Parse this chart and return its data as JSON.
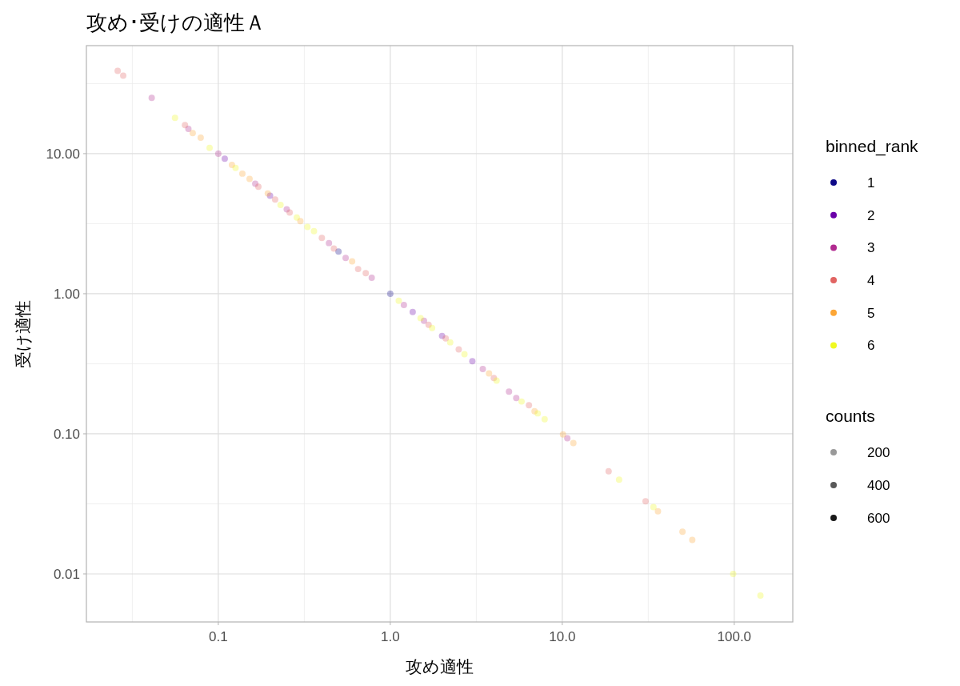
{
  "chart_data": {
    "type": "scatter",
    "title": "攻め･受けの適性Ａ",
    "xlabel": "攻め適性",
    "ylabel": "受け適性",
    "legend_title": "binned_rank",
    "log": "xy",
    "grid": true,
    "legend": "right",
    "marker": "circle",
    "xlim": [
      0.0171,
      219
    ],
    "ylim": [
      0.00454,
      59
    ],
    "xticks": [
      {
        "value": 0.1,
        "label": "0.1"
      },
      {
        "value": 1,
        "label": "1.0"
      },
      {
        "value": 10,
        "label": "10.0"
      },
      {
        "value": 100,
        "label": "100.0"
      }
    ],
    "yticks": [
      {
        "value": 0.01,
        "label": "0.01"
      },
      {
        "value": 0.1,
        "label": "0.10"
      },
      {
        "value": 1,
        "label": "1.00"
      },
      {
        "value": 10,
        "label": "10.00"
      }
    ],
    "annotations": [
      "counts",
      "200",
      "400",
      "600"
    ],
    "series": [
      {
        "name": "1",
        "color": "#0d0887",
        "x": [
          0.5,
          1.0
        ],
        "values": [
          2.0,
          1.0
        ]
      },
      {
        "name": "2",
        "color": "#6a00a8",
        "x": [
          0.109,
          0.2,
          1.35,
          2.0,
          3.0
        ],
        "values": [
          9.2,
          5.0,
          0.74,
          0.5,
          0.33
        ]
      },
      {
        "name": "3",
        "color": "#b12a90",
        "x": [
          0.041,
          0.067,
          0.1,
          0.164,
          0.25,
          0.44,
          0.55,
          0.78,
          1.2,
          1.57,
          3.45,
          4.9,
          5.4,
          10.7
        ],
        "values": [
          25,
          15,
          10,
          6.1,
          4.0,
          2.3,
          1.8,
          1.3,
          0.83,
          0.64,
          0.29,
          0.2,
          0.18,
          0.093
        ]
      },
      {
        "name": "4",
        "color": "#e16462",
        "x": [
          0.026,
          0.028,
          0.064,
          0.171,
          0.214,
          0.26,
          0.4,
          0.47,
          0.65,
          0.72,
          1.67,
          2.1,
          2.5,
          4.0,
          6.4,
          18.6,
          30.5
        ],
        "values": [
          39,
          36,
          16,
          5.8,
          4.7,
          3.8,
          2.5,
          2.1,
          1.5,
          1.4,
          0.6,
          0.48,
          0.4,
          0.25,
          0.16,
          0.054,
          0.033
        ]
      },
      {
        "name": "5",
        "color": "#fca636",
        "x": [
          0.071,
          0.079,
          0.12,
          0.138,
          0.152,
          0.194,
          0.3,
          0.6,
          3.75,
          6.9,
          10.1,
          11.6,
          36,
          50,
          57
        ],
        "values": [
          14,
          13,
          8.3,
          7.2,
          6.6,
          5.2,
          3.3,
          1.7,
          0.27,
          0.145,
          0.099,
          0.086,
          0.028,
          0.02,
          0.0175
        ]
      },
      {
        "name": "6",
        "color": "#f0f921",
        "x": [
          0.056,
          0.089,
          0.126,
          0.23,
          0.286,
          0.33,
          0.36,
          1.12,
          1.5,
          1.75,
          2.23,
          2.7,
          4.15,
          5.8,
          7.2,
          7.9,
          21.4,
          33.9,
          98.6,
          142
        ],
        "values": [
          18,
          11,
          7.9,
          4.3,
          3.5,
          3.0,
          2.8,
          0.89,
          0.67,
          0.57,
          0.45,
          0.37,
          0.24,
          0.17,
          0.14,
          0.127,
          0.047,
          0.03,
          0.01,
          0.007
        ]
      }
    ]
  }
}
